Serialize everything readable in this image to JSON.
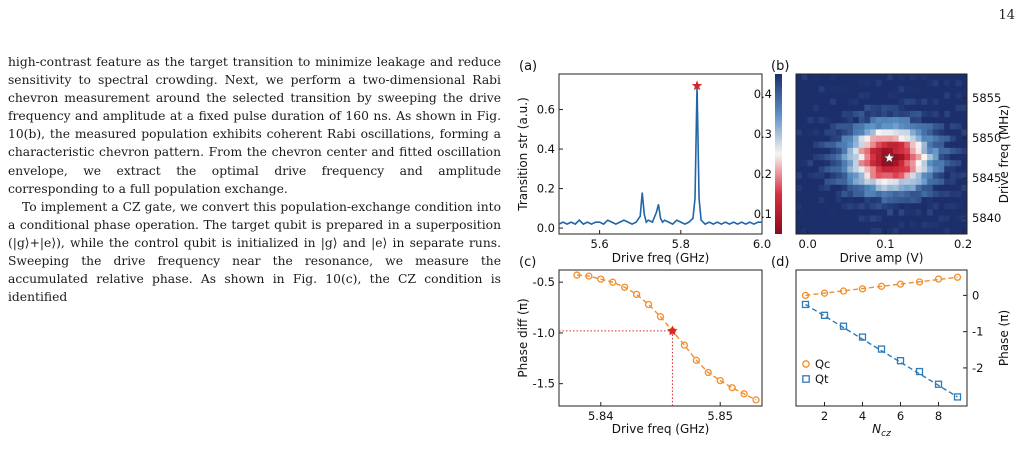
{
  "page_number": "14",
  "body_text": {
    "paragraph1": "high-contrast feature as the target transition to minimize leakage and reduce sensitivity to spectral crowding. Next, we perform a two-dimensional Rabi chevron measurement around the selected transition by sweeping the drive frequency and amplitude at a fixed pulse duration of 160 ns. As shown in Fig. 10(b), the measured population exhibits coherent Rabi oscillations, forming a characteristic chevron pattern. From the chevron center and fitted oscillation envelope, we extract the optimal drive frequency and amplitude corresponding to a full population exchange.",
    "paragraph2": "To implement a CZ gate, we convert this population-exchange condition into a conditional phase operation. The target qubit is prepared in a superposition (|g⟩+|e⟩), while the control qubit is initialized in |g⟩ and |e⟩ in separate runs. Sweeping the drive frequency near the resonance, we measure the accumulated relative phase. As shown in Fig. 10(c), the CZ condition is identified"
  },
  "chart_data": [
    {
      "panel": "(a)",
      "type": "line",
      "xlabel": "Drive freq (GHz)",
      "ylabel": "Transition str (a.u.)",
      "xlim": [
        5.5,
        6.0
      ],
      "ylim": [
        -0.03,
        0.78
      ],
      "xticks": [
        "5.6",
        "5.8",
        "6.0"
      ],
      "yticks": [
        "0.0",
        "0.2",
        "0.4",
        "0.6"
      ],
      "x": [
        5.5,
        5.51,
        5.52,
        5.53,
        5.54,
        5.55,
        5.56,
        5.57,
        5.58,
        5.59,
        5.6,
        5.61,
        5.62,
        5.63,
        5.64,
        5.65,
        5.66,
        5.67,
        5.68,
        5.69,
        5.7,
        5.705,
        5.71,
        5.715,
        5.72,
        5.73,
        5.74,
        5.745,
        5.75,
        5.755,
        5.76,
        5.77,
        5.78,
        5.79,
        5.8,
        5.81,
        5.82,
        5.83,
        5.835,
        5.84,
        5.845,
        5.85,
        5.855,
        5.86,
        5.87,
        5.88,
        5.89,
        5.9,
        5.91,
        5.92,
        5.93,
        5.94,
        5.95,
        5.96,
        5.97,
        5.98,
        5.99,
        6.0
      ],
      "values": [
        0.02,
        0.03,
        0.02,
        0.03,
        0.02,
        0.04,
        0.02,
        0.03,
        0.02,
        0.03,
        0.03,
        0.02,
        0.04,
        0.03,
        0.02,
        0.03,
        0.04,
        0.03,
        0.02,
        0.03,
        0.06,
        0.18,
        0.07,
        0.03,
        0.04,
        0.03,
        0.08,
        0.12,
        0.05,
        0.03,
        0.04,
        0.03,
        0.02,
        0.04,
        0.03,
        0.02,
        0.03,
        0.05,
        0.15,
        0.72,
        0.15,
        0.04,
        0.03,
        0.02,
        0.03,
        0.02,
        0.03,
        0.02,
        0.03,
        0.02,
        0.03,
        0.02,
        0.03,
        0.02,
        0.03,
        0.02,
        0.03,
        0.03
      ],
      "marker": {
        "x": 5.84,
        "y": 0.72,
        "symbol": "star"
      },
      "line_color": "#2166a8",
      "marker_color": "#d6262b"
    },
    {
      "panel": "(b)",
      "type": "heatmap",
      "xlabel": "Drive amp (V)",
      "ylabel": "Drive freq (MHz)",
      "xlim": [
        -0.015,
        0.205
      ],
      "ylim": [
        5838,
        5858
      ],
      "xticks": [
        "0.0",
        "0.1",
        "0.2"
      ],
      "yticks": [
        "5840",
        "5845",
        "5850",
        "5855"
      ],
      "colorbar_ticks": [
        "0.1",
        "0.2",
        "0.3",
        "0.4"
      ],
      "colorbar_range": [
        0.05,
        0.45
      ],
      "center": {
        "amp": 0.105,
        "freq": 5847.5
      },
      "marker": {
        "symbol": "star",
        "color": "#ffffff"
      }
    },
    {
      "panel": "(c)",
      "type": "scatter",
      "xlabel": "Drive freq (GHz)",
      "ylabel": "Phase diff (π)",
      "xlim": [
        5.8365,
        5.8535
      ],
      "ylim": [
        -1.72,
        -0.38
      ],
      "xticks": [
        "5.84",
        "5.85"
      ],
      "yticks": [
        "-0.5",
        "-1.0",
        "-1.5"
      ],
      "x": [
        5.838,
        5.839,
        5.84,
        5.841,
        5.842,
        5.843,
        5.844,
        5.845,
        5.846,
        5.847,
        5.848,
        5.849,
        5.85,
        5.851,
        5.852,
        5.853
      ],
      "values": [
        -0.43,
        -0.44,
        -0.47,
        -0.5,
        -0.55,
        -0.62,
        -0.72,
        -0.84,
        -0.98,
        -1.12,
        -1.27,
        -1.39,
        -1.47,
        -1.54,
        -1.6,
        -1.66
      ],
      "marker": {
        "x": 5.846,
        "y": -0.98,
        "symbol": "star"
      },
      "color": "#f28e2b",
      "marker_color": "#d6262b"
    },
    {
      "panel": "(d)",
      "type": "scatter",
      "xlabel": "N",
      "xlabel_sub": "cz",
      "ylabel": "Phase (π)",
      "xlim": [
        0.5,
        9.5
      ],
      "ylim": [
        -3.05,
        0.7
      ],
      "xticks": [
        "2",
        "4",
        "6",
        "8"
      ],
      "yticks": [
        "0",
        "-1",
        "-2"
      ],
      "series": [
        {
          "name": "Qc",
          "x": [
            1,
            2,
            3,
            4,
            5,
            6,
            7,
            8,
            9
          ],
          "values": [
            0.0,
            0.06,
            0.12,
            0.18,
            0.25,
            0.31,
            0.37,
            0.45,
            0.5
          ],
          "color": "#f28e2b",
          "marker": "circle"
        },
        {
          "name": "Qt",
          "x": [
            1,
            2,
            3,
            4,
            5,
            6,
            7,
            8,
            9
          ],
          "values": [
            -0.25,
            -0.55,
            -0.85,
            -1.15,
            -1.48,
            -1.8,
            -2.1,
            -2.45,
            -2.8
          ],
          "color": "#2f7ab8",
          "marker": "square"
        }
      ],
      "legend": "lower-left"
    }
  ]
}
